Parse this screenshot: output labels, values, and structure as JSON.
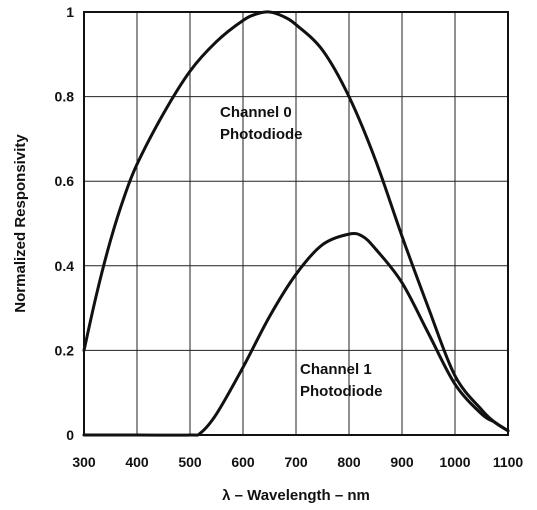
{
  "chart_data": {
    "type": "line",
    "xlabel": "λ – Wavelength – nm",
    "ylabel": "Normalized Responsivity",
    "xlim": [
      300,
      1100
    ],
    "ylim": [
      0,
      1
    ],
    "x_ticks": [
      300,
      400,
      500,
      600,
      700,
      800,
      900,
      1000,
      1100
    ],
    "y_ticks": [
      0,
      0.2,
      0.4,
      0.6,
      0.8,
      1
    ],
    "y_tick_labels": [
      "0",
      "0.2",
      "0.4",
      "0.6",
      "0.8",
      "1"
    ],
    "grid": true,
    "series": [
      {
        "name": "Channel 0 Photodiode",
        "x": [
          300,
          325,
          350,
          375,
          400,
          450,
          500,
          550,
          600,
          625,
          650,
          675,
          700,
          750,
          800,
          850,
          900,
          950,
          1000,
          1050,
          1075,
          1100
        ],
        "y": [
          0.2,
          0.34,
          0.46,
          0.56,
          0.64,
          0.76,
          0.86,
          0.93,
          0.98,
          0.995,
          1.0,
          0.99,
          0.97,
          0.91,
          0.8,
          0.65,
          0.47,
          0.3,
          0.14,
          0.06,
          0.03,
          0.01
        ]
      },
      {
        "name": "Channel 1 Photodiode",
        "x": [
          300,
          400,
          500,
          520,
          550,
          600,
          650,
          700,
          750,
          800,
          825,
          850,
          900,
          950,
          1000,
          1050,
          1075,
          1100
        ],
        "y": [
          0.0,
          0.0,
          0.0,
          0.005,
          0.05,
          0.16,
          0.28,
          0.38,
          0.45,
          0.475,
          0.47,
          0.44,
          0.36,
          0.24,
          0.12,
          0.05,
          0.03,
          0.01
        ]
      }
    ],
    "annotations": [
      {
        "lines": [
          "Channel 0",
          "Photodiode"
        ]
      },
      {
        "lines": [
          "Channel 1",
          "Photodiode"
        ]
      }
    ]
  }
}
